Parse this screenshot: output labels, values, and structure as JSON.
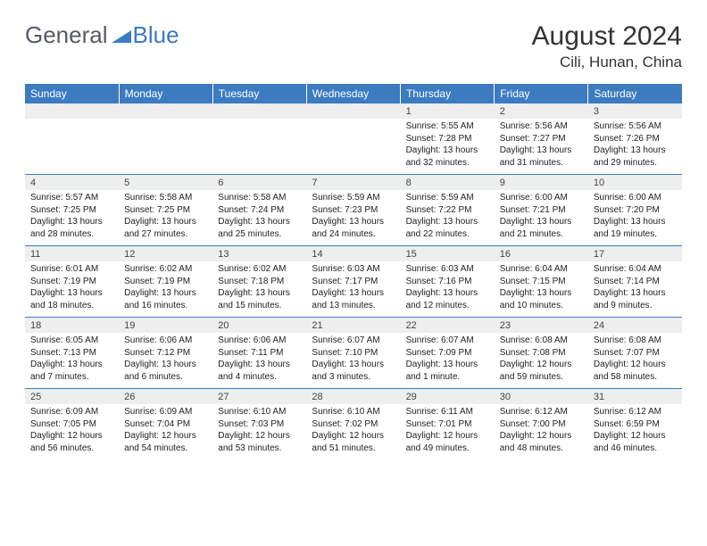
{
  "logo": {
    "text1": "General",
    "text2": "Blue",
    "color1": "#555b66",
    "color2": "#3c7bc0"
  },
  "title": "August 2024",
  "location": "Cili, Hunan, China",
  "header_bg": "#3c7bc0",
  "daynum_bg": "#edeeee",
  "weekdays": [
    "Sunday",
    "Monday",
    "Tuesday",
    "Wednesday",
    "Thursday",
    "Friday",
    "Saturday"
  ],
  "weeks": [
    {
      "nums": [
        "",
        "",
        "",
        "",
        "1",
        "2",
        "3"
      ],
      "data": [
        null,
        null,
        null,
        null,
        {
          "sr": "Sunrise: 5:55 AM",
          "ss": "Sunset: 7:28 PM",
          "d1": "Daylight: 13 hours",
          "d2": "and 32 minutes."
        },
        {
          "sr": "Sunrise: 5:56 AM",
          "ss": "Sunset: 7:27 PM",
          "d1": "Daylight: 13 hours",
          "d2": "and 31 minutes."
        },
        {
          "sr": "Sunrise: 5:56 AM",
          "ss": "Sunset: 7:26 PM",
          "d1": "Daylight: 13 hours",
          "d2": "and 29 minutes."
        }
      ]
    },
    {
      "nums": [
        "4",
        "5",
        "6",
        "7",
        "8",
        "9",
        "10"
      ],
      "data": [
        {
          "sr": "Sunrise: 5:57 AM",
          "ss": "Sunset: 7:25 PM",
          "d1": "Daylight: 13 hours",
          "d2": "and 28 minutes."
        },
        {
          "sr": "Sunrise: 5:58 AM",
          "ss": "Sunset: 7:25 PM",
          "d1": "Daylight: 13 hours",
          "d2": "and 27 minutes."
        },
        {
          "sr": "Sunrise: 5:58 AM",
          "ss": "Sunset: 7:24 PM",
          "d1": "Daylight: 13 hours",
          "d2": "and 25 minutes."
        },
        {
          "sr": "Sunrise: 5:59 AM",
          "ss": "Sunset: 7:23 PM",
          "d1": "Daylight: 13 hours",
          "d2": "and 24 minutes."
        },
        {
          "sr": "Sunrise: 5:59 AM",
          "ss": "Sunset: 7:22 PM",
          "d1": "Daylight: 13 hours",
          "d2": "and 22 minutes."
        },
        {
          "sr": "Sunrise: 6:00 AM",
          "ss": "Sunset: 7:21 PM",
          "d1": "Daylight: 13 hours",
          "d2": "and 21 minutes."
        },
        {
          "sr": "Sunrise: 6:00 AM",
          "ss": "Sunset: 7:20 PM",
          "d1": "Daylight: 13 hours",
          "d2": "and 19 minutes."
        }
      ]
    },
    {
      "nums": [
        "11",
        "12",
        "13",
        "14",
        "15",
        "16",
        "17"
      ],
      "data": [
        {
          "sr": "Sunrise: 6:01 AM",
          "ss": "Sunset: 7:19 PM",
          "d1": "Daylight: 13 hours",
          "d2": "and 18 minutes."
        },
        {
          "sr": "Sunrise: 6:02 AM",
          "ss": "Sunset: 7:19 PM",
          "d1": "Daylight: 13 hours",
          "d2": "and 16 minutes."
        },
        {
          "sr": "Sunrise: 6:02 AM",
          "ss": "Sunset: 7:18 PM",
          "d1": "Daylight: 13 hours",
          "d2": "and 15 minutes."
        },
        {
          "sr": "Sunrise: 6:03 AM",
          "ss": "Sunset: 7:17 PM",
          "d1": "Daylight: 13 hours",
          "d2": "and 13 minutes."
        },
        {
          "sr": "Sunrise: 6:03 AM",
          "ss": "Sunset: 7:16 PM",
          "d1": "Daylight: 13 hours",
          "d2": "and 12 minutes."
        },
        {
          "sr": "Sunrise: 6:04 AM",
          "ss": "Sunset: 7:15 PM",
          "d1": "Daylight: 13 hours",
          "d2": "and 10 minutes."
        },
        {
          "sr": "Sunrise: 6:04 AM",
          "ss": "Sunset: 7:14 PM",
          "d1": "Daylight: 13 hours",
          "d2": "and 9 minutes."
        }
      ]
    },
    {
      "nums": [
        "18",
        "19",
        "20",
        "21",
        "22",
        "23",
        "24"
      ],
      "data": [
        {
          "sr": "Sunrise: 6:05 AM",
          "ss": "Sunset: 7:13 PM",
          "d1": "Daylight: 13 hours",
          "d2": "and 7 minutes."
        },
        {
          "sr": "Sunrise: 6:06 AM",
          "ss": "Sunset: 7:12 PM",
          "d1": "Daylight: 13 hours",
          "d2": "and 6 minutes."
        },
        {
          "sr": "Sunrise: 6:06 AM",
          "ss": "Sunset: 7:11 PM",
          "d1": "Daylight: 13 hours",
          "d2": "and 4 minutes."
        },
        {
          "sr": "Sunrise: 6:07 AM",
          "ss": "Sunset: 7:10 PM",
          "d1": "Daylight: 13 hours",
          "d2": "and 3 minutes."
        },
        {
          "sr": "Sunrise: 6:07 AM",
          "ss": "Sunset: 7:09 PM",
          "d1": "Daylight: 13 hours",
          "d2": "and 1 minute."
        },
        {
          "sr": "Sunrise: 6:08 AM",
          "ss": "Sunset: 7:08 PM",
          "d1": "Daylight: 12 hours",
          "d2": "and 59 minutes."
        },
        {
          "sr": "Sunrise: 6:08 AM",
          "ss": "Sunset: 7:07 PM",
          "d1": "Daylight: 12 hours",
          "d2": "and 58 minutes."
        }
      ]
    },
    {
      "nums": [
        "25",
        "26",
        "27",
        "28",
        "29",
        "30",
        "31"
      ],
      "data": [
        {
          "sr": "Sunrise: 6:09 AM",
          "ss": "Sunset: 7:05 PM",
          "d1": "Daylight: 12 hours",
          "d2": "and 56 minutes."
        },
        {
          "sr": "Sunrise: 6:09 AM",
          "ss": "Sunset: 7:04 PM",
          "d1": "Daylight: 12 hours",
          "d2": "and 54 minutes."
        },
        {
          "sr": "Sunrise: 6:10 AM",
          "ss": "Sunset: 7:03 PM",
          "d1": "Daylight: 12 hours",
          "d2": "and 53 minutes."
        },
        {
          "sr": "Sunrise: 6:10 AM",
          "ss": "Sunset: 7:02 PM",
          "d1": "Daylight: 12 hours",
          "d2": "and 51 minutes."
        },
        {
          "sr": "Sunrise: 6:11 AM",
          "ss": "Sunset: 7:01 PM",
          "d1": "Daylight: 12 hours",
          "d2": "and 49 minutes."
        },
        {
          "sr": "Sunrise: 6:12 AM",
          "ss": "Sunset: 7:00 PM",
          "d1": "Daylight: 12 hours",
          "d2": "and 48 minutes."
        },
        {
          "sr": "Sunrise: 6:12 AM",
          "ss": "Sunset: 6:59 PM",
          "d1": "Daylight: 12 hours",
          "d2": "and 46 minutes."
        }
      ]
    }
  ]
}
